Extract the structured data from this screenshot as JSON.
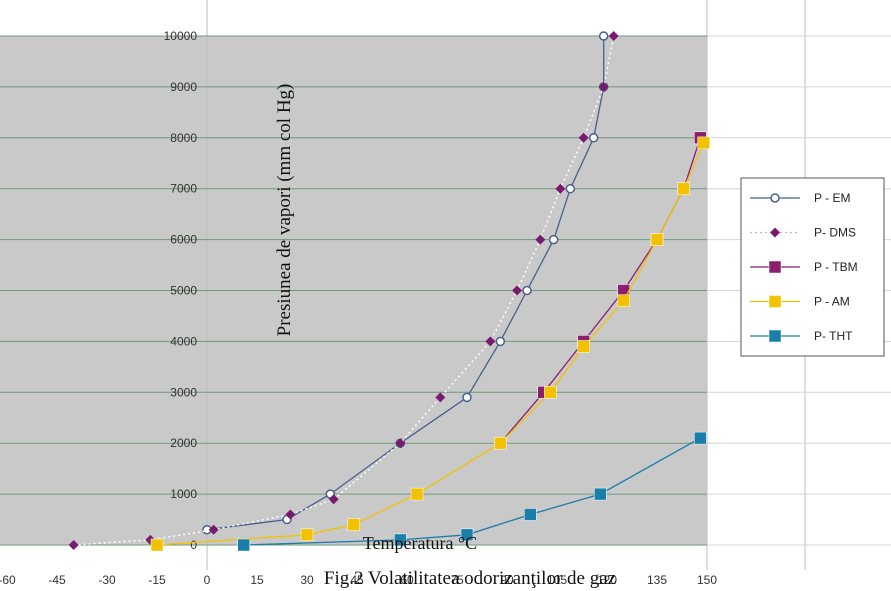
{
  "chart_data": {
    "type": "line",
    "title": "",
    "xlabel": "Temperatura °C",
    "ylabel": "Presiunea de vapori (mm col Hg)",
    "caption": "Fig.2 Volatilitatea odorizanţilor de gaz",
    "xlim": [
      -60,
      150
    ],
    "ylim": [
      0,
      10000
    ],
    "x_tick_labels": [
      "-60",
      "-45",
      "-30",
      "-15",
      "0",
      "15",
      "30",
      "45",
      "60",
      "75",
      "90",
      "105",
      "120",
      "135",
      "150"
    ],
    "y_ticks": [
      0,
      1000,
      2000,
      3000,
      4000,
      5000,
      6000,
      7000,
      8000,
      9000,
      10000
    ],
    "grid": true,
    "legend_position": "right",
    "series": [
      {
        "name": "P - EM",
        "color": "#4a5f8e",
        "marker": "circle",
        "x": [
          0,
          24,
          37,
          58,
          78,
          88,
          96,
          104,
          109,
          116,
          119
        ],
        "y": [
          300,
          500,
          1000,
          2000,
          2900,
          4000,
          5000,
          6000,
          7000,
          8000,
          9000
        ]
      },
      {
        "name": "P- DMS",
        "color": "#7a1a6e",
        "marker": "diamond",
        "x": [
          -40,
          -17,
          2,
          25,
          38,
          58,
          70,
          85,
          93,
          100,
          106,
          113,
          119
        ],
        "y": [
          0,
          100,
          300,
          600,
          900,
          2000,
          2900,
          4000,
          5000,
          6000,
          7000,
          8000,
          9000
        ]
      },
      {
        "name": "P - TBM",
        "color": "#8b1f6e",
        "marker": "square",
        "x": [
          88,
          101,
          113,
          125,
          135,
          143,
          148
        ],
        "y": [
          2000,
          3000,
          4000,
          5000,
          6000,
          7000,
          8000
        ]
      },
      {
        "name": "P - AM",
        "color": "#f2c200",
        "marker": "square",
        "x": [
          -15,
          30,
          44,
          63,
          88,
          103,
          113,
          125,
          135,
          143,
          149
        ],
        "y": [
          0,
          200,
          400,
          1000,
          2000,
          3000,
          3900,
          4800,
          6000,
          7000,
          7900
        ]
      },
      {
        "name": "P- THT",
        "color": "#1a7ea8",
        "marker": "square",
        "x": [
          11,
          58,
          78,
          97,
          118,
          148
        ],
        "y": [
          0,
          100,
          200,
          600,
          1000,
          2100
        ]
      }
    ],
    "extra_series": {
      "name": "P- DMS upper",
      "x": [
        122
      ],
      "y": [
        10000
      ]
    },
    "em_top": {
      "x": [
        119
      ],
      "y": [
        10000
      ]
    }
  }
}
